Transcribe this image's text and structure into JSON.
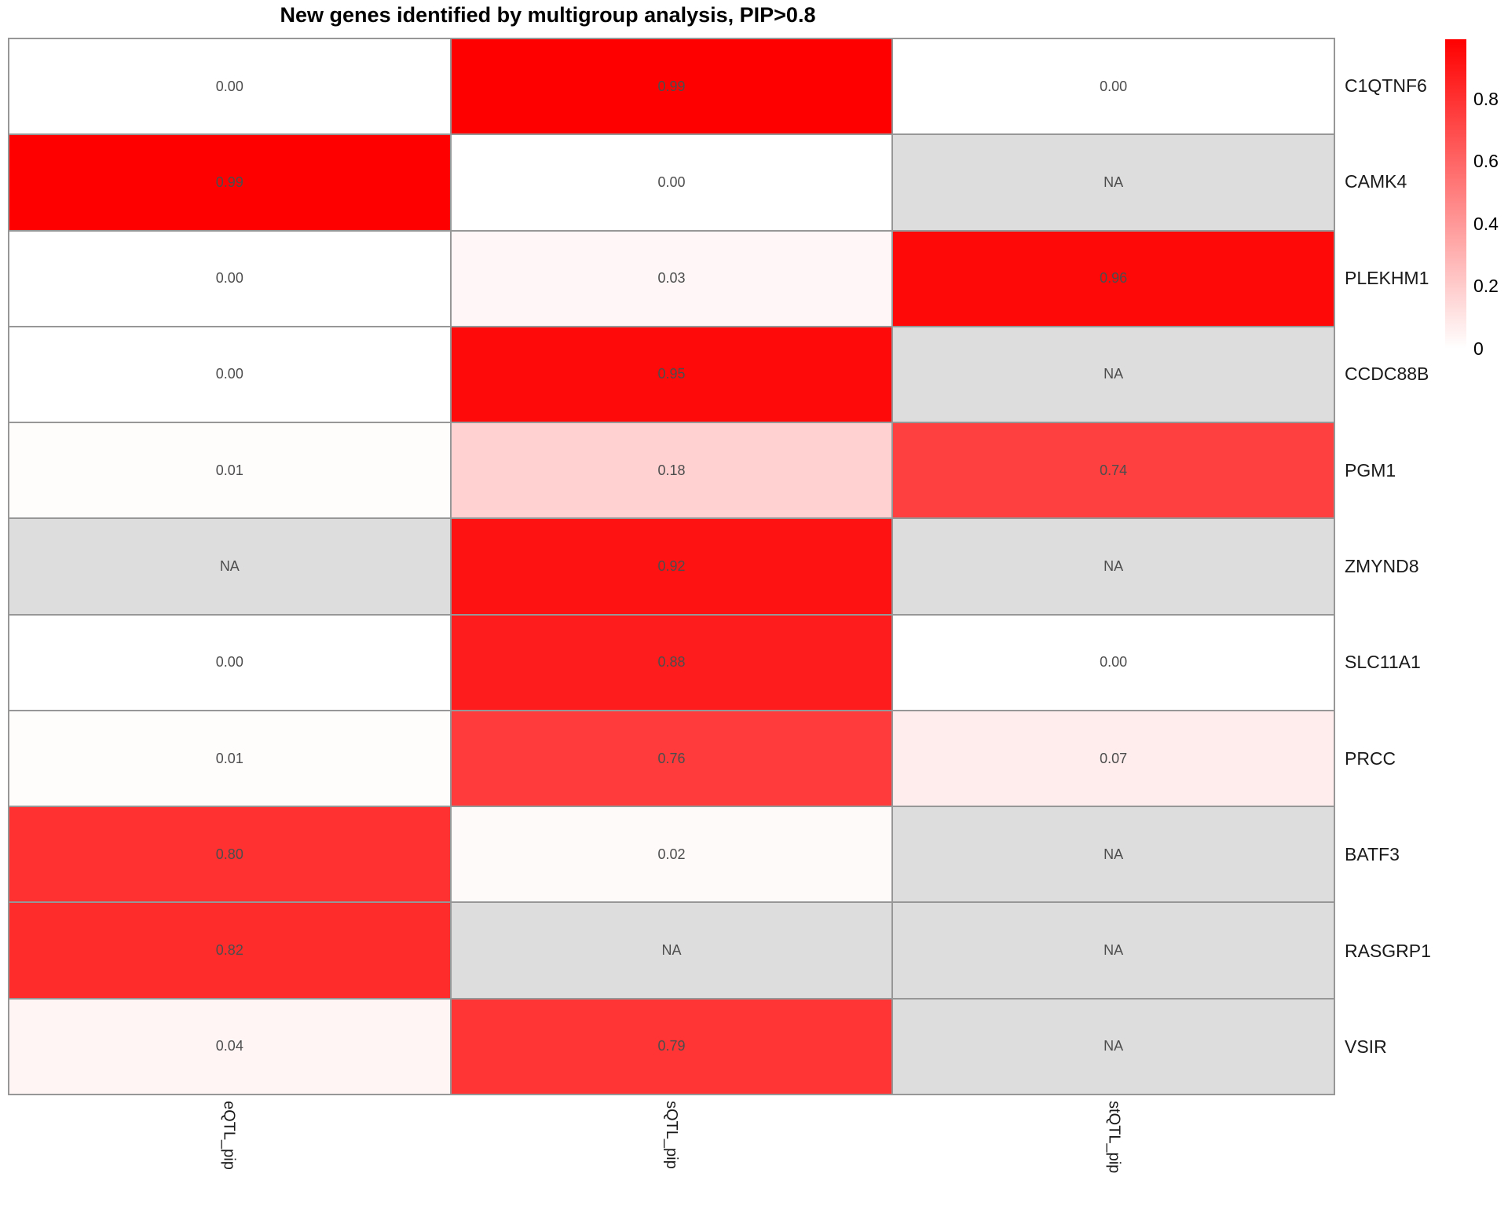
{
  "title": "New genes identified by multigroup analysis, PIP>0.8",
  "chart_data": {
    "type": "heatmap",
    "columns": [
      "eQTL_pip",
      "sQTL_pip",
      "stQTL_pip"
    ],
    "rows": [
      "C1QTNF6",
      "CAMK4",
      "PLEKHM1",
      "CCDC88B",
      "PGM1",
      "ZMYND8",
      "SLC11A1",
      "PRCC",
      "BATF3",
      "RASGRP1",
      "VSIR"
    ],
    "values": [
      [
        0.0,
        0.99,
        0.0
      ],
      [
        0.99,
        0.0,
        null
      ],
      [
        0.0,
        0.03,
        0.96
      ],
      [
        0.0,
        0.95,
        null
      ],
      [
        0.01,
        0.18,
        0.74
      ],
      [
        null,
        0.92,
        null
      ],
      [
        0.0,
        0.88,
        0.0
      ],
      [
        0.01,
        0.76,
        0.07
      ],
      [
        0.8,
        0.02,
        null
      ],
      [
        0.82,
        null,
        null
      ],
      [
        0.04,
        0.79,
        null
      ]
    ],
    "cell_labels": [
      [
        "0.00",
        "0.99",
        "0.00"
      ],
      [
        "0.99",
        "0.00",
        "NA"
      ],
      [
        "0.00",
        "0.03",
        "0.96"
      ],
      [
        "0.00",
        "0.95",
        "NA"
      ],
      [
        "0.01",
        "0.18",
        "0.74"
      ],
      [
        "NA",
        "0.92",
        "NA"
      ],
      [
        "0.00",
        "0.88",
        "0.00"
      ],
      [
        "0.01",
        "0.76",
        "0.07"
      ],
      [
        "0.80",
        "0.02",
        "NA"
      ],
      [
        "0.82",
        "NA",
        "NA"
      ],
      [
        "0.04",
        "0.79",
        "NA"
      ]
    ],
    "na_label": "NA",
    "scale": {
      "min": 0,
      "max": 0.99
    },
    "colors": {
      "high": "#FF0000",
      "low": "#FFFFFF",
      "na": "#DDDDDD",
      "grid": "#979797",
      "value_text": "#4D4D4D",
      "label_text": "#1A1A1A"
    },
    "legend": {
      "position": "right",
      "tick_labels": [
        "0.8",
        "0.6",
        "0.4",
        "0.2",
        "0"
      ],
      "tick_values": [
        0.8,
        0.6,
        0.4,
        0.2,
        0
      ]
    },
    "grid_on": true
  }
}
